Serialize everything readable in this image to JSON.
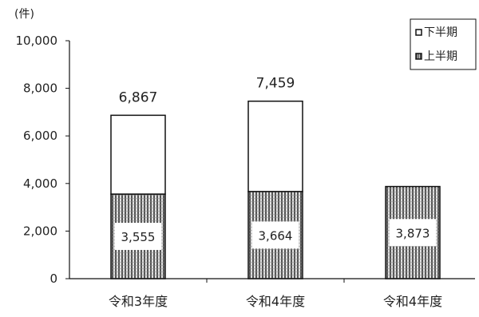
{
  "chart_data": {
    "type": "bar",
    "stacked": true,
    "unit_label": "(件)",
    "categories": [
      "令和3年度",
      "令和4年度",
      "令和4年度"
    ],
    "series": [
      {
        "name": "上半期",
        "values": [
          3555,
          3664,
          3873
        ],
        "labels": [
          "3,555",
          "3,664",
          "3,873"
        ],
        "pattern": "hatched",
        "color": "#9a9a9a"
      },
      {
        "name": "下半期",
        "values": [
          3312,
          3795,
          null
        ],
        "pattern": "solid",
        "color": "#ffffff"
      }
    ],
    "totals": [
      6867,
      7459,
      null
    ],
    "total_labels": [
      "6,867",
      "7,459",
      ""
    ],
    "ylim": [
      0,
      10000
    ],
    "yticks": [
      0,
      2000,
      4000,
      6000,
      8000,
      10000
    ],
    "ytick_labels": [
      "0",
      "2,000",
      "4,000",
      "6,000",
      "8,000",
      "10,000"
    ],
    "grid": false,
    "legend_position": "top-right",
    "legend_order": [
      "下半期",
      "上半期"
    ],
    "colors": {
      "outline": "#111111",
      "hatch_dark": "#555555",
      "hatch_light": "#e0e0e0"
    }
  }
}
